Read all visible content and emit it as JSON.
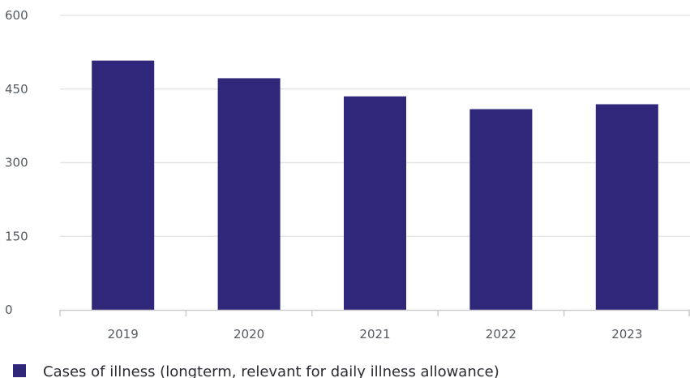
{
  "chart_data": {
    "type": "bar",
    "categories": [
      "2019",
      "2020",
      "2021",
      "2022",
      "2023"
    ],
    "series": [
      {
        "name": "Cases of illness (longterm, relevant for daily illness allowance)",
        "values": [
          508,
          472,
          435,
          409,
          419
        ]
      }
    ],
    "ylim": [
      0,
      600
    ],
    "yticks": [
      0,
      150,
      300,
      450,
      600
    ],
    "grid": true,
    "legend": "bottom-left",
    "colors": {
      "bar": "#2f287a",
      "grid": "#e6e6e6",
      "axis": "#cccccc",
      "text": "#555a60"
    }
  }
}
